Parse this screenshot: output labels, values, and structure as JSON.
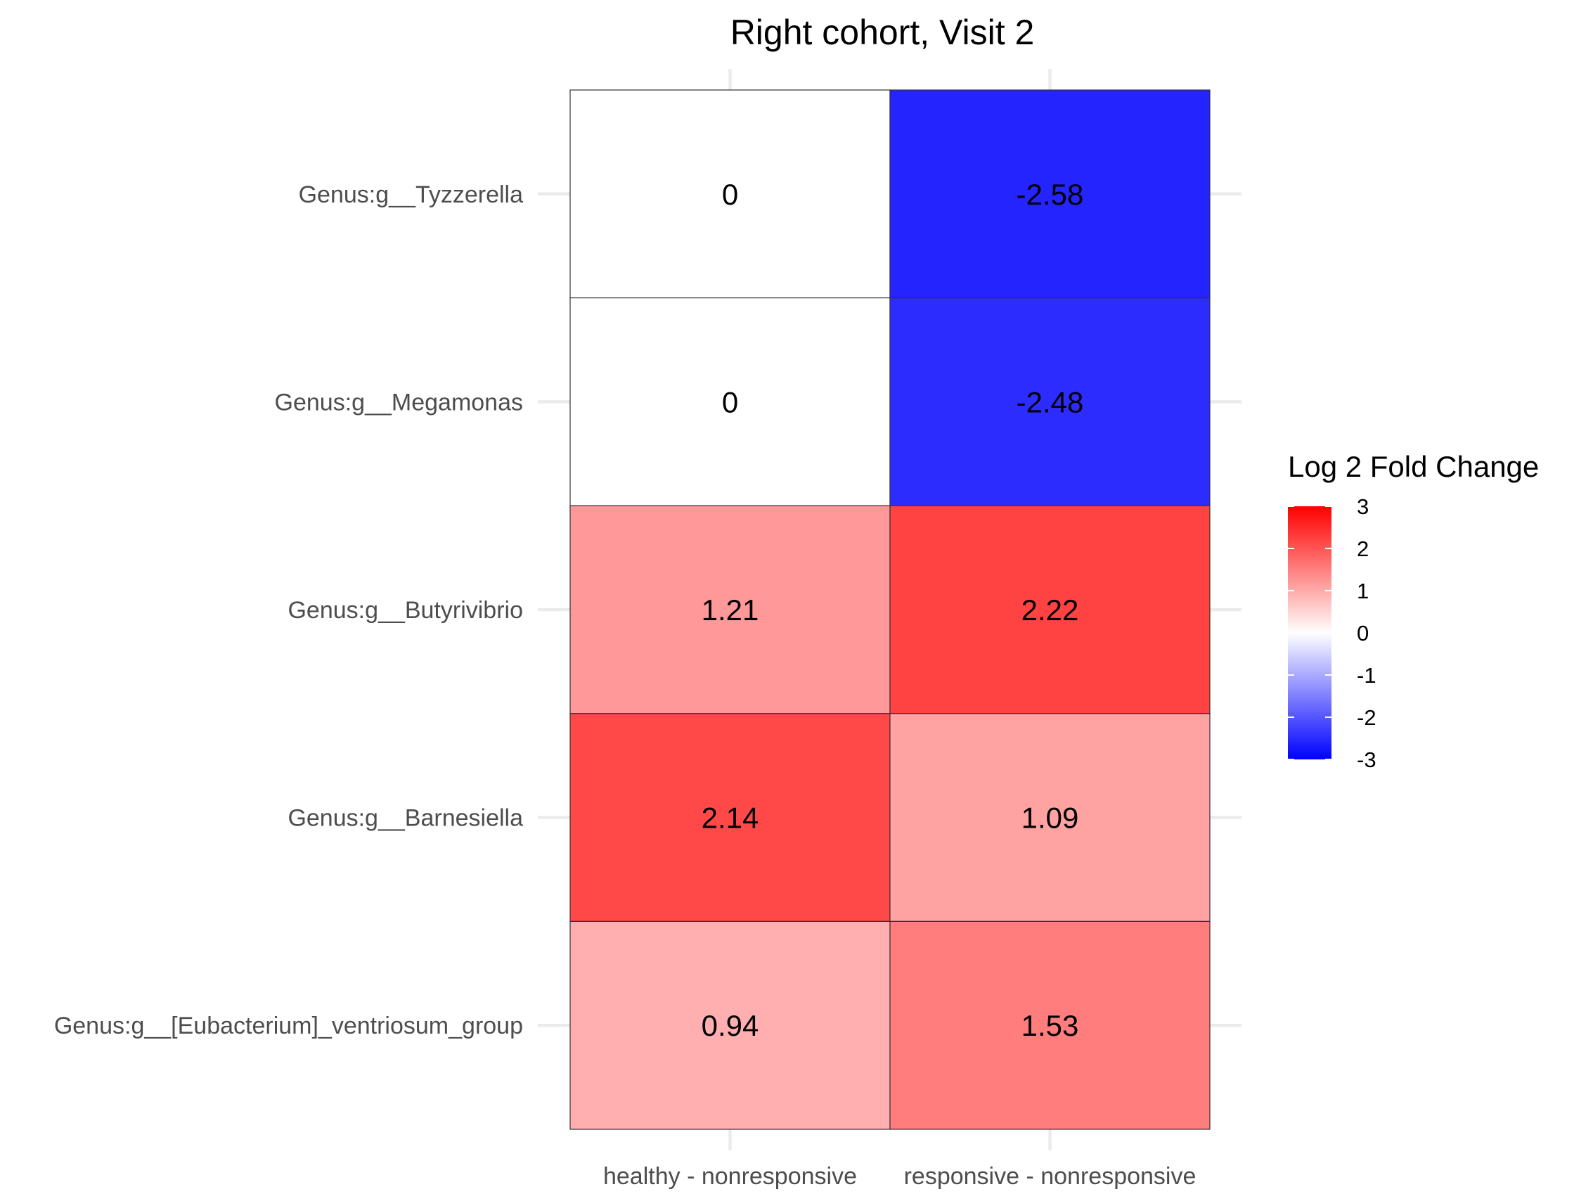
{
  "chart_data": {
    "type": "heatmap",
    "title": "Right cohort, Visit 2",
    "xlabel": "",
    "ylabel": "",
    "x_categories": [
      "healthy - nonresponsive",
      "responsive - nonresponsive"
    ],
    "y_categories": [
      "Genus:g__Tyzzerella",
      "Genus:g__Megamonas",
      "Genus:g__Butyrivibrio",
      "Genus:g__Barnesiella",
      "Genus:g__[Eubacterium]_ventriosum_group"
    ],
    "values": [
      [
        0,
        -2.58
      ],
      [
        0,
        -2.48
      ],
      [
        1.21,
        2.22
      ],
      [
        2.14,
        1.09
      ],
      [
        0.94,
        1.53
      ]
    ],
    "labels": [
      [
        "0",
        "-2.58"
      ],
      [
        "0",
        "-2.48"
      ],
      [
        "1.21",
        "2.22"
      ],
      [
        "2.14",
        "1.09"
      ],
      [
        "0.94",
        "1.53"
      ]
    ],
    "legend": {
      "title": "Log 2 Fold Change",
      "position": "right",
      "ticks": [
        "3",
        "2",
        "1",
        "0",
        "-1",
        "-2",
        "-3"
      ],
      "limits": [
        -3,
        3
      ]
    },
    "colors": {
      "low": "#0000ff",
      "mid": "#ffffff",
      "high": "#ff0000"
    },
    "grid": true
  }
}
